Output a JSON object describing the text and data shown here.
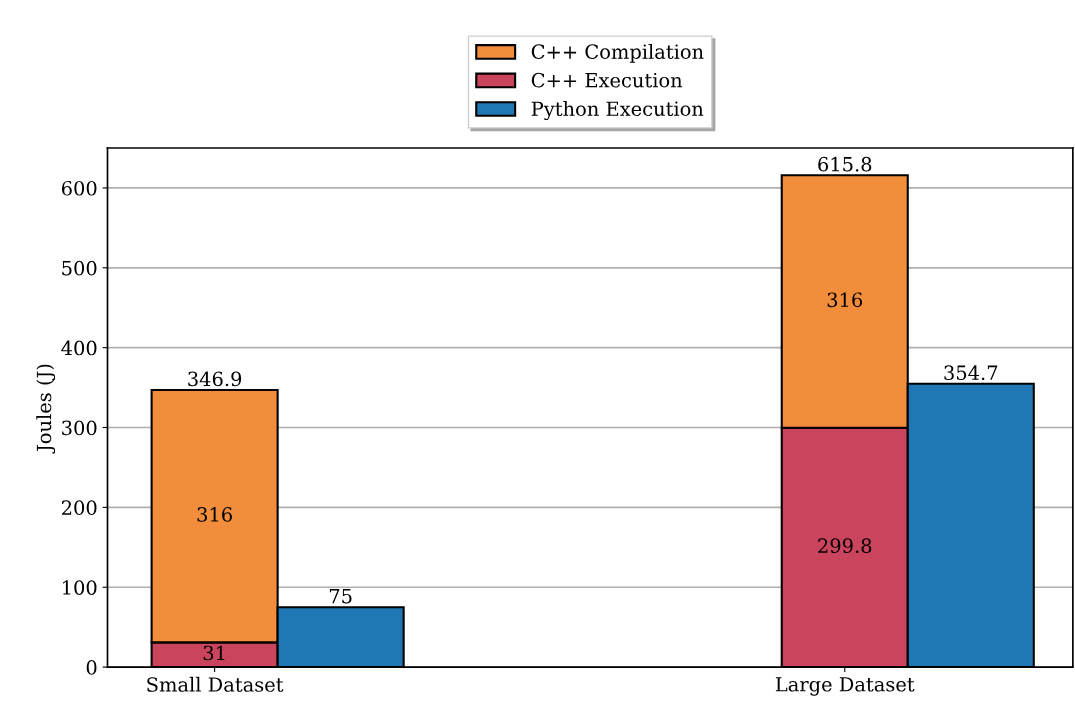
{
  "chart_data": {
    "type": "bar",
    "ylabel": "Joules (J)",
    "stacked": true,
    "categories": [
      "Small Dataset",
      null,
      null,
      null,
      null,
      "Large Dataset",
      null
    ],
    "series": [
      {
        "name": "C++ Execution",
        "color": "#c9445c",
        "values": [
          31,
          null,
          null,
          null,
          null,
          299.8,
          null
        ]
      },
      {
        "name": "C++ Compilation",
        "color": "#f28e3b",
        "values": [
          316,
          null,
          null,
          null,
          null,
          316,
          null
        ]
      },
      {
        "name": "Python Execution",
        "color": "#1f77b4",
        "values": [
          null,
          75,
          null,
          null,
          null,
          null,
          354.7
        ]
      }
    ],
    "totals": [
      "346.9",
      null,
      null,
      null,
      null,
      "615.8",
      null
    ],
    "ylim": [
      0,
      650
    ],
    "yticks": [
      0,
      100,
      200,
      300,
      400,
      500,
      600
    ],
    "grid": "y",
    "legend": "top",
    "data_labels": true
  }
}
